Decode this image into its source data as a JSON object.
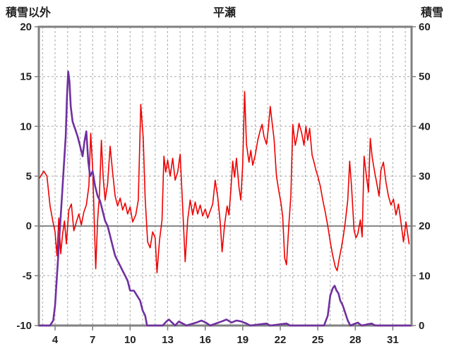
{
  "chart_data": {
    "type": "line",
    "title": "平瀬",
    "left_axis_title": "積雪以外",
    "right_axis_title": "積雪",
    "x_ticks": [
      4,
      7,
      10,
      13,
      16,
      19,
      22,
      25,
      28,
      31
    ],
    "x_range": [
      2.7,
      32.5
    ],
    "left_ticks": [
      20,
      15,
      10,
      5,
      0,
      -5,
      -10
    ],
    "left_range": [
      -10,
      20
    ],
    "right_ticks": [
      60,
      50,
      40,
      30,
      20,
      10,
      0
    ],
    "right_range": [
      0,
      60
    ],
    "grid": {
      "vertical_day_start": 3,
      "vertical_day_end": 32,
      "horizontal_dashed_at": [
        15,
        10,
        5,
        -5
      ]
    },
    "zero_line_value": 0,
    "legend": "none",
    "colors": {
      "frame": "#808080",
      "grid": "#a9a9a9",
      "zero_line": "#808080",
      "tick": "#808080",
      "text": "#222222",
      "background": "#ffffff"
    },
    "series": [
      {
        "name": "積雪以外",
        "axis": "left",
        "color": "#ee0000",
        "width": 1.6,
        "points": [
          [
            2.75,
            4.8
          ],
          [
            3.1,
            5.5
          ],
          [
            3.35,
            5.0
          ],
          [
            3.6,
            2.0
          ],
          [
            3.8,
            0.6
          ],
          [
            4.0,
            -0.6
          ],
          [
            4.15,
            -3.0
          ],
          [
            4.3,
            0.8
          ],
          [
            4.45,
            -2.8
          ],
          [
            4.6,
            -0.8
          ],
          [
            4.75,
            0.5
          ],
          [
            4.9,
            -1.8
          ],
          [
            5.1,
            1.6
          ],
          [
            5.3,
            2.2
          ],
          [
            5.5,
            -0.5
          ],
          [
            5.7,
            0.4
          ],
          [
            5.9,
            1.2
          ],
          [
            6.1,
            0.1
          ],
          [
            6.3,
            1.4
          ],
          [
            6.5,
            2.1
          ],
          [
            6.7,
            4.0
          ],
          [
            6.85,
            9.3
          ],
          [
            7.0,
            5.8
          ],
          [
            7.1,
            1.8
          ],
          [
            7.25,
            -4.3
          ],
          [
            7.4,
            0.6
          ],
          [
            7.55,
            3.2
          ],
          [
            7.7,
            8.6
          ],
          [
            7.85,
            4.8
          ],
          [
            8.0,
            2.6
          ],
          [
            8.2,
            4.2
          ],
          [
            8.4,
            8.0
          ],
          [
            8.6,
            5.4
          ],
          [
            8.8,
            3.0
          ],
          [
            9.0,
            2.0
          ],
          [
            9.2,
            2.8
          ],
          [
            9.4,
            1.6
          ],
          [
            9.6,
            2.3
          ],
          [
            9.8,
            1.2
          ],
          [
            10.0,
            1.9
          ],
          [
            10.2,
            0.4
          ],
          [
            10.45,
            1.1
          ],
          [
            10.65,
            2.6
          ],
          [
            10.85,
            12.2
          ],
          [
            11.05,
            8.8
          ],
          [
            11.2,
            2.8
          ],
          [
            11.4,
            -1.6
          ],
          [
            11.6,
            -2.2
          ],
          [
            11.8,
            -0.6
          ],
          [
            12.0,
            -1.2
          ],
          [
            12.15,
            -4.7
          ],
          [
            12.35,
            -1.4
          ],
          [
            12.55,
            0.6
          ],
          [
            12.7,
            7.0
          ],
          [
            12.85,
            5.4
          ],
          [
            13.0,
            6.6
          ],
          [
            13.2,
            5.0
          ],
          [
            13.4,
            6.8
          ],
          [
            13.6,
            4.6
          ],
          [
            13.8,
            5.4
          ],
          [
            14.0,
            7.2
          ],
          [
            14.2,
            1.8
          ],
          [
            14.4,
            -3.6
          ],
          [
            14.6,
            0.6
          ],
          [
            14.8,
            2.6
          ],
          [
            15.0,
            1.1
          ],
          [
            15.2,
            2.4
          ],
          [
            15.4,
            1.2
          ],
          [
            15.6,
            2.1
          ],
          [
            15.8,
            1.0
          ],
          [
            16.0,
            1.7
          ],
          [
            16.2,
            0.8
          ],
          [
            16.4,
            1.5
          ],
          [
            16.6,
            2.2
          ],
          [
            16.8,
            4.6
          ],
          [
            17.0,
            2.9
          ],
          [
            17.2,
            0.4
          ],
          [
            17.35,
            -2.6
          ],
          [
            17.55,
            0.1
          ],
          [
            17.75,
            2.0
          ],
          [
            17.9,
            1.1
          ],
          [
            18.05,
            3.6
          ],
          [
            18.2,
            6.5
          ],
          [
            18.35,
            4.9
          ],
          [
            18.5,
            6.8
          ],
          [
            18.7,
            3.9
          ],
          [
            18.85,
            2.6
          ],
          [
            19.0,
            6.2
          ],
          [
            19.15,
            13.5
          ],
          [
            19.3,
            8.2
          ],
          [
            19.5,
            6.4
          ],
          [
            19.65,
            7.6
          ],
          [
            19.8,
            6.1
          ],
          [
            20.0,
            7.1
          ],
          [
            20.2,
            8.6
          ],
          [
            20.4,
            9.6
          ],
          [
            20.55,
            10.2
          ],
          [
            20.7,
            9.0
          ],
          [
            20.9,
            8.2
          ],
          [
            21.05,
            9.8
          ],
          [
            21.2,
            12.0
          ],
          [
            21.35,
            10.4
          ],
          [
            21.5,
            8.8
          ],
          [
            21.7,
            5.0
          ],
          [
            21.9,
            3.4
          ],
          [
            22.05,
            2.4
          ],
          [
            22.2,
            0.9
          ],
          [
            22.35,
            -3.2
          ],
          [
            22.5,
            -3.9
          ],
          [
            22.7,
            0.4
          ],
          [
            22.85,
            3.0
          ],
          [
            23.0,
            10.2
          ],
          [
            23.2,
            8.1
          ],
          [
            23.35,
            9.0
          ],
          [
            23.5,
            10.3
          ],
          [
            23.7,
            9.4
          ],
          [
            23.9,
            8.1
          ],
          [
            24.05,
            10.0
          ],
          [
            24.2,
            8.6
          ],
          [
            24.35,
            9.8
          ],
          [
            24.55,
            7.1
          ],
          [
            24.7,
            6.4
          ],
          [
            24.85,
            5.6
          ],
          [
            25.0,
            5.0
          ],
          [
            25.2,
            4.0
          ],
          [
            25.4,
            2.6
          ],
          [
            25.6,
            1.4
          ],
          [
            25.8,
            0.0
          ],
          [
            26.0,
            -1.6
          ],
          [
            26.2,
            -3.0
          ],
          [
            26.4,
            -4.1
          ],
          [
            26.55,
            -4.5
          ],
          [
            26.7,
            -3.4
          ],
          [
            26.9,
            -2.1
          ],
          [
            27.05,
            -1.0
          ],
          [
            27.2,
            0.4
          ],
          [
            27.4,
            2.6
          ],
          [
            27.55,
            6.5
          ],
          [
            27.7,
            3.9
          ],
          [
            27.9,
            -0.4
          ],
          [
            28.05,
            -1.2
          ],
          [
            28.2,
            -0.8
          ],
          [
            28.4,
            0.6
          ],
          [
            28.55,
            -1.1
          ],
          [
            28.7,
            7.0
          ],
          [
            28.9,
            4.9
          ],
          [
            29.05,
            3.4
          ],
          [
            29.2,
            8.8
          ],
          [
            29.35,
            6.9
          ],
          [
            29.55,
            5.4
          ],
          [
            29.7,
            4.4
          ],
          [
            29.9,
            3.0
          ],
          [
            30.05,
            5.6
          ],
          [
            30.25,
            6.4
          ],
          [
            30.45,
            4.4
          ],
          [
            30.65,
            3.0
          ],
          [
            30.85,
            2.1
          ],
          [
            31.05,
            2.7
          ],
          [
            31.25,
            1.1
          ],
          [
            31.45,
            2.2
          ],
          [
            31.65,
            0.4
          ],
          [
            31.85,
            -1.6
          ],
          [
            32.05,
            0.4
          ],
          [
            32.3,
            -1.8
          ]
        ]
      },
      {
        "name": "積雪",
        "axis": "right",
        "color": "#7030a0",
        "width": 2.6,
        "points": [
          [
            2.75,
            0
          ],
          [
            3.6,
            0
          ],
          [
            3.85,
            1
          ],
          [
            4.0,
            4
          ],
          [
            4.2,
            12
          ],
          [
            4.4,
            20
          ],
          [
            4.55,
            26
          ],
          [
            4.7,
            32
          ],
          [
            4.85,
            38
          ],
          [
            4.95,
            46
          ],
          [
            5.05,
            51
          ],
          [
            5.15,
            49
          ],
          [
            5.25,
            44
          ],
          [
            5.4,
            41
          ],
          [
            5.6,
            39.5
          ],
          [
            5.8,
            38
          ],
          [
            6.0,
            36
          ],
          [
            6.2,
            34
          ],
          [
            6.35,
            37
          ],
          [
            6.5,
            39
          ],
          [
            6.65,
            33
          ],
          [
            6.8,
            30
          ],
          [
            7.0,
            31
          ],
          [
            7.2,
            28
          ],
          [
            7.4,
            26
          ],
          [
            7.6,
            25
          ],
          [
            7.8,
            23
          ],
          [
            8.0,
            21
          ],
          [
            8.2,
            20
          ],
          [
            8.4,
            18
          ],
          [
            8.6,
            16
          ],
          [
            8.8,
            14
          ],
          [
            9.0,
            13
          ],
          [
            9.2,
            12
          ],
          [
            9.4,
            11
          ],
          [
            9.6,
            10
          ],
          [
            9.8,
            9
          ],
          [
            10.0,
            7
          ],
          [
            10.3,
            7
          ],
          [
            10.55,
            6
          ],
          [
            10.8,
            5
          ],
          [
            11.0,
            3
          ],
          [
            11.2,
            2
          ],
          [
            11.35,
            0
          ],
          [
            12.6,
            0
          ],
          [
            12.9,
            0.8
          ],
          [
            13.1,
            1.2
          ],
          [
            13.35,
            0.6
          ],
          [
            13.6,
            0
          ],
          [
            13.9,
            0.8
          ],
          [
            14.2,
            0.4
          ],
          [
            14.5,
            0
          ],
          [
            15.3,
            0.6
          ],
          [
            15.7,
            1.0
          ],
          [
            16.05,
            0.6
          ],
          [
            16.4,
            0
          ],
          [
            17.3,
            0.8
          ],
          [
            17.7,
            1.2
          ],
          [
            18.1,
            0.6
          ],
          [
            18.5,
            1.0
          ],
          [
            18.9,
            0.8
          ],
          [
            19.3,
            0.4
          ],
          [
            19.6,
            0
          ],
          [
            20.9,
            0.4
          ],
          [
            21.2,
            0
          ],
          [
            22.5,
            0.4
          ],
          [
            22.8,
            0
          ],
          [
            25.5,
            0
          ],
          [
            25.8,
            2
          ],
          [
            26.0,
            6
          ],
          [
            26.2,
            7.5
          ],
          [
            26.35,
            8
          ],
          [
            26.5,
            7
          ],
          [
            26.65,
            6.5
          ],
          [
            26.8,
            5
          ],
          [
            27.0,
            4
          ],
          [
            27.2,
            2.5
          ],
          [
            27.4,
            1
          ],
          [
            27.6,
            0
          ],
          [
            28.2,
            0.6
          ],
          [
            28.5,
            0
          ],
          [
            29.3,
            0.4
          ],
          [
            29.6,
            0
          ],
          [
            32.4,
            0
          ]
        ]
      }
    ]
  }
}
